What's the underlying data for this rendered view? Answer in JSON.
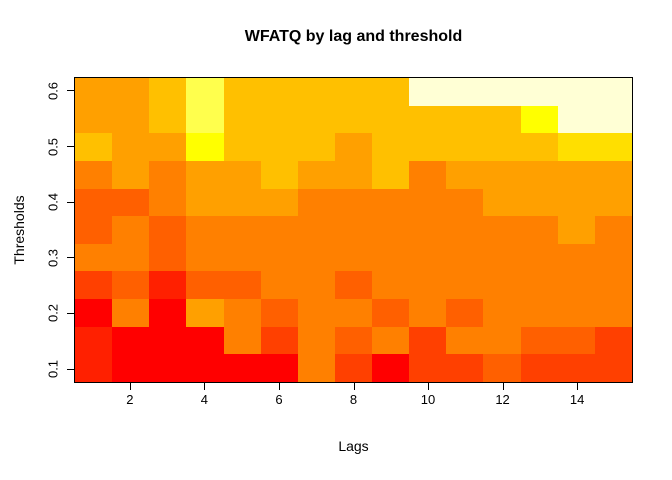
{
  "chart_data": {
    "type": "heatmap",
    "title": "WFATQ by lag and threshold",
    "xlabel": "Lags",
    "ylabel": "Thresholds",
    "x_axis": {
      "values": [
        1,
        2,
        3,
        4,
        5,
        6,
        7,
        8,
        9,
        10,
        11,
        12,
        13,
        14,
        15
      ],
      "tick_labels": [
        "2",
        "4",
        "6",
        "8",
        "10",
        "12",
        "14"
      ],
      "range": [
        0.5,
        15.5
      ]
    },
    "y_axis": {
      "values": [
        0.1,
        0.15,
        0.2,
        0.25,
        0.3,
        0.35,
        0.4,
        0.45,
        0.5,
        0.55,
        0.6
      ],
      "tick_labels": [
        "0.1",
        "0.2",
        "0.3",
        "0.4",
        "0.5",
        "0.6"
      ],
      "range": [
        0.075,
        0.625
      ],
      "step": 0.05
    },
    "legend": "none",
    "grid_lines": "off",
    "palette": [
      "#FF0000",
      "#FF2000",
      "#FF4000",
      "#FF6000",
      "#FF8000",
      "#FFA000",
      "#FFC000",
      "#FFDF00",
      "#FFFF00",
      "#FFFF4D",
      "#FFFFD5"
    ],
    "palette_note": "heat colors, level 1 = red (low WFATQ) to level 11 = cream (high WFATQ)",
    "rows_note": "rows ordered bottom to top; levels are 1-based indexes into palette, one per lag 1..15",
    "rows": [
      {
        "threshold": 0.1,
        "levels": [
          2,
          1,
          1,
          1,
          1,
          1,
          5,
          3,
          1,
          3,
          3,
          4,
          3,
          3,
          3
        ]
      },
      {
        "threshold": 0.15,
        "levels": [
          2,
          1,
          1,
          1,
          5,
          3,
          5,
          4,
          5,
          3,
          5,
          5,
          4,
          4,
          3
        ]
      },
      {
        "threshold": 0.2,
        "levels": [
          1,
          5,
          1,
          6,
          5,
          4,
          5,
          5,
          4,
          5,
          4,
          5,
          5,
          5,
          5
        ]
      },
      {
        "threshold": 0.25,
        "levels": [
          3,
          4,
          2,
          4,
          4,
          5,
          5,
          4,
          5,
          5,
          5,
          5,
          5,
          5,
          5
        ]
      },
      {
        "threshold": 0.3,
        "levels": [
          5,
          5,
          4,
          5,
          5,
          5,
          5,
          5,
          5,
          5,
          5,
          5,
          5,
          5,
          5
        ]
      },
      {
        "threshold": 0.35,
        "levels": [
          4,
          5,
          4,
          5,
          5,
          5,
          5,
          5,
          5,
          5,
          5,
          5,
          5,
          6,
          5
        ]
      },
      {
        "threshold": 0.4,
        "levels": [
          4,
          4,
          5,
          6,
          6,
          6,
          5,
          5,
          5,
          5,
          5,
          6,
          6,
          6,
          6
        ]
      },
      {
        "threshold": 0.45,
        "levels": [
          5,
          6,
          5,
          6,
          6,
          7,
          6,
          6,
          7,
          5,
          6,
          6,
          6,
          6,
          6
        ]
      },
      {
        "threshold": 0.5,
        "levels": [
          7,
          6,
          6,
          9,
          7,
          7,
          7,
          6,
          7,
          7,
          7,
          7,
          7,
          8,
          8
        ]
      },
      {
        "threshold": 0.55,
        "levels": [
          6,
          6,
          7,
          10,
          7,
          7,
          7,
          7,
          7,
          7,
          7,
          7,
          9,
          11,
          11
        ]
      },
      {
        "threshold": 0.6,
        "levels": [
          6,
          6,
          7,
          10,
          7,
          7,
          7,
          7,
          7,
          11,
          11,
          11,
          11,
          11,
          11
        ]
      }
    ]
  }
}
